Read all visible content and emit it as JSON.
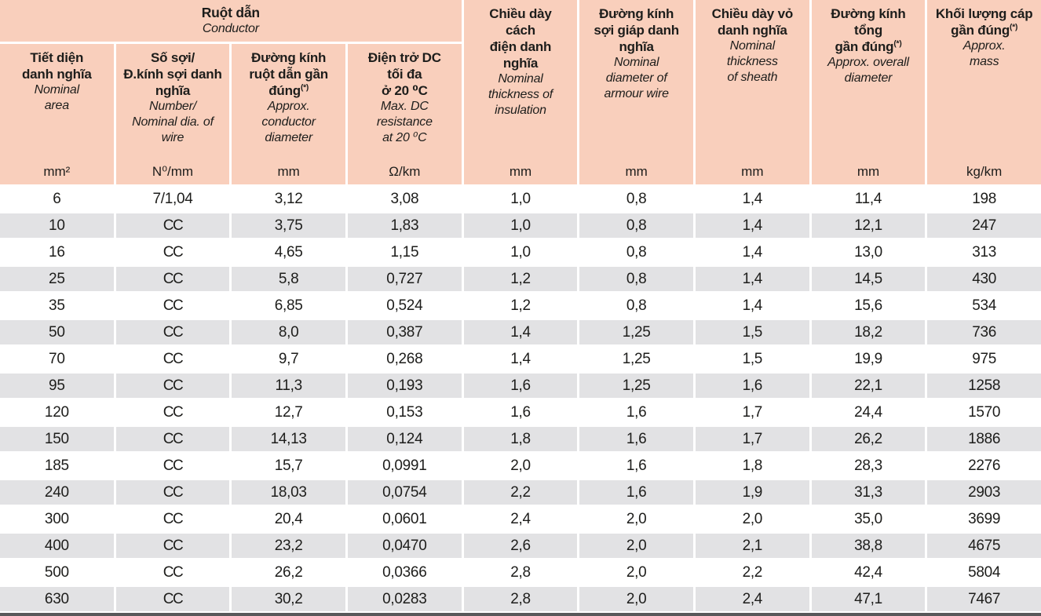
{
  "colors": {
    "header_bg": "#f9cfbc",
    "row_bg": "#ffffff",
    "row_alt_bg": "#e2e2e4",
    "text": "#1d1d1b",
    "bottom_rule": "#58585a",
    "grid_lines": "#ffffff"
  },
  "table": {
    "group_header": {
      "title": "Ruột dẫn",
      "subtitle": "Conductor"
    },
    "columns": [
      {
        "title": [
          "Tiết diện",
          "danh nghĩa"
        ],
        "subtitle": [
          "Nominal",
          "area"
        ],
        "unit": "mm²"
      },
      {
        "title": [
          "Số sợi/",
          "Đ.kính sợi danh",
          "nghĩa"
        ],
        "subtitle": [
          "Number/",
          "Nominal dia. of",
          "wire"
        ],
        "unit": "N⁰/mm"
      },
      {
        "title": [
          "Đường kính",
          "ruột dẫn gần",
          "đúng^(*)^"
        ],
        "subtitle": [
          "Approx.",
          "conductor",
          "diameter"
        ],
        "unit": "mm"
      },
      {
        "title": [
          "Điện trở DC",
          "tối đa",
          "ở 20 ⁰C"
        ],
        "subtitle": [
          "Max. DC",
          "resistance",
          "at 20 ⁰C"
        ],
        "unit": "Ω/km"
      },
      {
        "title": [
          "Chiều dày",
          "cách",
          "điện danh",
          "nghĩa"
        ],
        "subtitle": [
          "Nominal",
          "thickness of",
          "insulation"
        ],
        "unit": "mm"
      },
      {
        "title": [
          "Đường kính",
          "sợi giáp danh",
          "nghĩa"
        ],
        "subtitle": [
          "Nominal",
          "diameter of",
          "armour wire"
        ],
        "unit": "mm"
      },
      {
        "title": [
          "Chiều dày vỏ",
          "danh nghĩa"
        ],
        "subtitle": [
          "Nominal",
          "thickness",
          "of sheath"
        ],
        "unit": "mm"
      },
      {
        "title": [
          "Đường kính",
          "tổng",
          "gần đúng^(*)^"
        ],
        "subtitle": [
          "Approx. overall",
          "diameter"
        ],
        "unit": "mm"
      },
      {
        "title": [
          "Khối lượng cáp",
          "gần đúng^(*)^"
        ],
        "subtitle": [
          "Approx.",
          "mass"
        ],
        "unit": "kg/km"
      }
    ],
    "rows": [
      [
        "6",
        "7/1,04",
        "3,12",
        "3,08",
        "1,0",
        "0,8",
        "1,4",
        "11,4",
        "198"
      ],
      [
        "10",
        "CC",
        "3,75",
        "1,83",
        "1,0",
        "0,8",
        "1,4",
        "12,1",
        "247"
      ],
      [
        "16",
        "CC",
        "4,65",
        "1,15",
        "1,0",
        "0,8",
        "1,4",
        "13,0",
        "313"
      ],
      [
        "25",
        "CC",
        "5,8",
        "0,727",
        "1,2",
        "0,8",
        "1,4",
        "14,5",
        "430"
      ],
      [
        "35",
        "CC",
        "6,85",
        "0,524",
        "1,2",
        "0,8",
        "1,4",
        "15,6",
        "534"
      ],
      [
        "50",
        "CC",
        "8,0",
        "0,387",
        "1,4",
        "1,25",
        "1,5",
        "18,2",
        "736"
      ],
      [
        "70",
        "CC",
        "9,7",
        "0,268",
        "1,4",
        "1,25",
        "1,5",
        "19,9",
        "975"
      ],
      [
        "95",
        "CC",
        "11,3",
        "0,193",
        "1,6",
        "1,25",
        "1,6",
        "22,1",
        "1258"
      ],
      [
        "120",
        "CC",
        "12,7",
        "0,153",
        "1,6",
        "1,6",
        "1,7",
        "24,4",
        "1570"
      ],
      [
        "150",
        "CC",
        "14,13",
        "0,124",
        "1,8",
        "1,6",
        "1,7",
        "26,2",
        "1886"
      ],
      [
        "185",
        "CC",
        "15,7",
        "0,0991",
        "2,0",
        "1,6",
        "1,8",
        "28,3",
        "2276"
      ],
      [
        "240",
        "CC",
        "18,03",
        "0,0754",
        "2,2",
        "1,6",
        "1,9",
        "31,3",
        "2903"
      ],
      [
        "300",
        "CC",
        "20,4",
        "0,0601",
        "2,4",
        "2,0",
        "2,0",
        "35,0",
        "3699"
      ],
      [
        "400",
        "CC",
        "23,2",
        "0,0470",
        "2,6",
        "2,0",
        "2,1",
        "38,8",
        "4675"
      ],
      [
        "500",
        "CC",
        "26,2",
        "0,0366",
        "2,8",
        "2,0",
        "2,2",
        "42,4",
        "5804"
      ],
      [
        "630",
        "CC",
        "30,2",
        "0,0283",
        "2,8",
        "2,0",
        "2,4",
        "47,1",
        "7467"
      ]
    ]
  }
}
